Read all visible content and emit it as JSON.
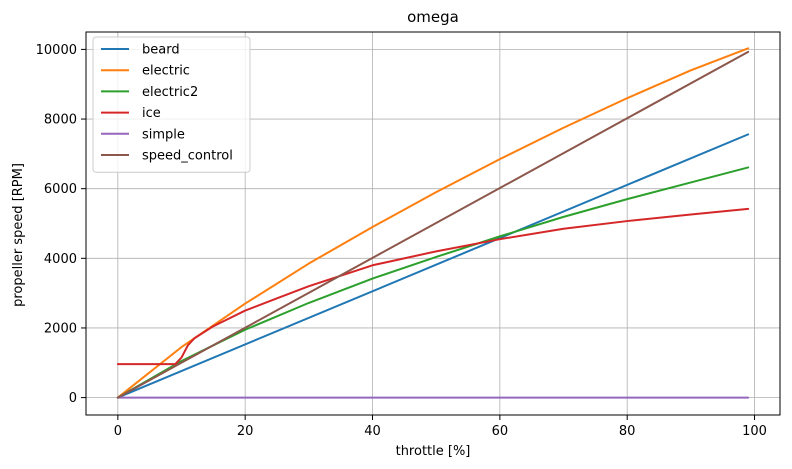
{
  "chart_data": {
    "type": "line",
    "title": "omega",
    "xlabel": "throttle [%]",
    "ylabel": "propeller speed [RPM]",
    "xlim": [
      -5,
      104
    ],
    "ylim": [
      -500,
      10500
    ],
    "x_ticks": [
      0,
      20,
      40,
      60,
      80,
      100
    ],
    "y_ticks": [
      0,
      2000,
      4000,
      6000,
      8000,
      10000
    ],
    "grid": true,
    "legend_position": "upper-left",
    "series": [
      {
        "name": "beard",
        "color": "#1f77b4",
        "x": [
          0,
          99
        ],
        "y": [
          0,
          7560
        ]
      },
      {
        "name": "electric",
        "color": "#ff7f0e",
        "x": [
          0,
          10,
          20,
          30,
          40,
          50,
          60,
          70,
          80,
          90,
          99
        ],
        "y": [
          0,
          1450,
          2700,
          3850,
          4900,
          5900,
          6850,
          7750,
          8600,
          9400,
          10030
        ]
      },
      {
        "name": "electric2",
        "color": "#2ca02c",
        "x": [
          0,
          10,
          20,
          30,
          40,
          50,
          60,
          70,
          80,
          90,
          99
        ],
        "y": [
          0,
          1050,
          1950,
          2720,
          3420,
          4040,
          4630,
          5190,
          5700,
          6180,
          6610
        ]
      },
      {
        "name": "ice",
        "color": "#d62728",
        "x": [
          0,
          9,
          10,
          11,
          12,
          15,
          20,
          25,
          30,
          40,
          50,
          60,
          70,
          80,
          90,
          99
        ],
        "y": [
          960,
          960,
          1150,
          1500,
          1700,
          2050,
          2500,
          2850,
          3200,
          3800,
          4200,
          4550,
          4850,
          5070,
          5260,
          5420
        ]
      },
      {
        "name": "simple",
        "color": "#9467bd",
        "x": [
          0,
          99
        ],
        "y": [
          0,
          0
        ]
      },
      {
        "name": "speed_control",
        "color": "#8c564b",
        "x": [
          0,
          99
        ],
        "y": [
          0,
          9930
        ]
      }
    ]
  }
}
